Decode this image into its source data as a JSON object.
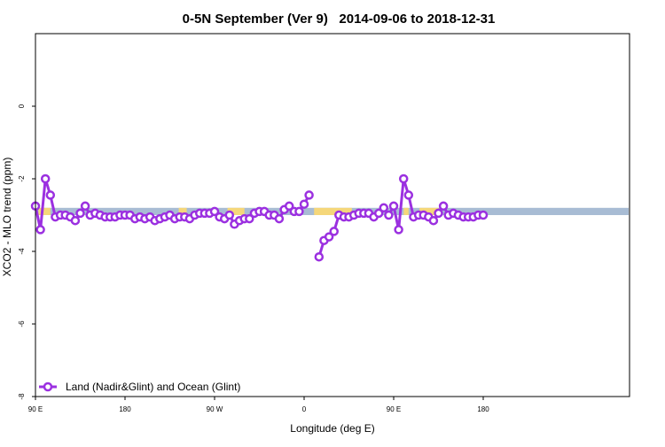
{
  "chart_data": {
    "type": "line",
    "title": "0-5N September (Ver 9)   2014-09-06 to 2018-12-31",
    "xlabel": "Longitude (deg E)",
    "ylabel": "XCO2 - MLO trend (ppm)",
    "xlim": [
      90,
      450
    ],
    "ylim": [
      -8,
      2
    ],
    "x_ticks": [
      {
        "value": 90,
        "label": "90 E"
      },
      {
        "value": 180,
        "label": "180"
      },
      {
        "value": 270,
        "label": "90 W"
      },
      {
        "value": 360,
        "label": "0"
      },
      {
        "value": 450,
        "label": "90 E"
      },
      {
        "value": 540,
        "label": "180"
      }
    ],
    "y_ticks": [
      {
        "value": 0,
        "label": "0"
      },
      {
        "value": -2,
        "label": "-2"
      },
      {
        "value": -4,
        "label": "-4"
      },
      {
        "value": -6,
        "label": "-6"
      },
      {
        "value": -8,
        "label": "-8"
      }
    ],
    "grid": false,
    "legend": {
      "position": "bottom-left",
      "entries": [
        "Land (Nadir&Glint) and Ocean (Glint)"
      ]
    },
    "surface_band": {
      "y_range": [
        -3.0,
        -2.8
      ],
      "ocean_color": "#a8bcd4",
      "land_color": "#f5d77a",
      "land_segments": [
        [
          93,
          105
        ],
        [
          234,
          242
        ],
        [
          283,
          300
        ],
        [
          370,
          408
        ],
        [
          460,
          465
        ],
        [
          476,
          495
        ]
      ]
    },
    "series": [
      {
        "name": "Land (Nadir&Glint) and Ocean (Glint)",
        "color": "#9b30e0",
        "segments": [
          {
            "x": [
              90,
              95,
              100,
              105,
              110,
              115,
              120,
              125,
              130,
              135,
              140,
              145,
              150,
              155,
              160,
              165,
              170,
              175,
              180,
              185,
              190,
              195,
              200,
              205,
              210,
              215,
              220,
              225,
              230,
              235,
              240,
              245,
              250,
              255,
              260,
              265,
              270,
              275,
              280,
              285,
              290,
              295,
              300,
              305,
              310,
              315,
              320,
              325,
              330,
              335,
              340,
              345,
              350,
              355,
              360,
              365
            ],
            "y": [
              -2.75,
              -3.4,
              -2.0,
              -2.45,
              -3.05,
              -3.0,
              -3.0,
              -3.05,
              -3.15,
              -2.95,
              -2.75,
              -3.0,
              -2.95,
              -3.0,
              -3.05,
              -3.05,
              -3.05,
              -3.0,
              -3.0,
              -3.0,
              -3.1,
              -3.05,
              -3.1,
              -3.05,
              -3.15,
              -3.1,
              -3.05,
              -3.0,
              -3.1,
              -3.05,
              -3.05,
              -3.1,
              -3.0,
              -2.95,
              -2.95,
              -2.95,
              -2.9,
              -3.05,
              -3.1,
              -3.0,
              -3.25,
              -3.15,
              -3.1,
              -3.1,
              -2.95,
              -2.9,
              -2.9,
              -3.0,
              -3.0,
              -3.1,
              -2.85,
              -2.75,
              -2.9,
              -2.9,
              -2.7,
              -2.45
            ]
          },
          {
            "x": [
              375,
              380,
              385,
              390,
              395,
              400,
              405,
              410,
              415,
              420,
              425,
              430,
              435,
              440,
              445,
              450,
              455,
              460,
              465,
              470,
              475,
              480,
              485,
              490,
              495,
              500,
              505,
              510,
              515,
              520,
              525,
              530,
              535,
              540
            ],
            "y": [
              -4.15,
              -3.7,
              -3.6,
              -3.45,
              -3.0,
              -3.05,
              -3.05,
              -3.0,
              -2.95,
              -2.95,
              -2.95,
              -3.05,
              -2.95,
              -2.8,
              -3.0,
              -2.75,
              -3.4,
              -2.0,
              -2.45,
              -3.05,
              -3.0,
              -3.0,
              -3.05,
              -3.15,
              -2.95,
              -2.75,
              -3.0,
              -2.95,
              -3.0,
              -3.05,
              -3.05,
              -3.05,
              -3.0,
              -3.0
            ]
          }
        ]
      }
    ]
  }
}
